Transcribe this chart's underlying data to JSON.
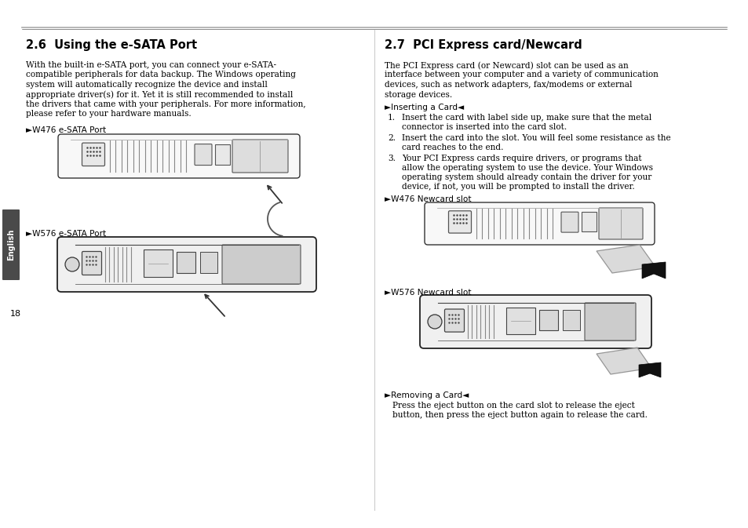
{
  "bg_color": "#ffffff",
  "sidebar_color": "#4a4a4a",
  "sidebar_text": "English",
  "page_number": "18",
  "left_title": "2.6  Using the e-SATA Port",
  "left_body_lines": [
    "With the built-in e-SATA port, you can connect your e-SATA-",
    "compatible peripherals for data backup. The Windows operating",
    "system will automatically recognize the device and install",
    "appropriate driver(s) for it. Yet it is still recommended to install",
    "the drivers that came with your peripherals. For more information,",
    "please refer to your hardware manuals."
  ],
  "left_label1": "►W476 e-SATA Port",
  "left_label2": "►W576 e-SATA Port",
  "right_title": "2.7  PCI Express card/Newcard",
  "right_body_lines": [
    "The PCI Express card (or Newcard) slot can be used as an",
    "interface between your computer and a variety of communication",
    "devices, such as network adapters, fax/modems or external",
    "storage devices."
  ],
  "inserting_label": "►Inserting a Card◄",
  "items": [
    [
      "1.",
      "Insert the card with label side up, make sure that the metal",
      "connector is inserted into the card slot."
    ],
    [
      "2.",
      "Insert the card into the slot. You will feel some resistance as the",
      "card reaches to the end."
    ],
    [
      "3.",
      "Your PCI Express cards require drivers, or programs that",
      "allow the operating system to use the device. Your Windows",
      "operating system should already contain the driver for your",
      "device, if not, you will be prompted to install the driver."
    ]
  ],
  "right_label1": "►W476 Newcard slot",
  "right_label2": "►W576 Newcard slot",
  "removing_label": "►Removing a Card◄",
  "removing_body_lines": [
    "Press the eject button on the card slot to release the eject",
    "button, then press the eject button again to release the card."
  ]
}
